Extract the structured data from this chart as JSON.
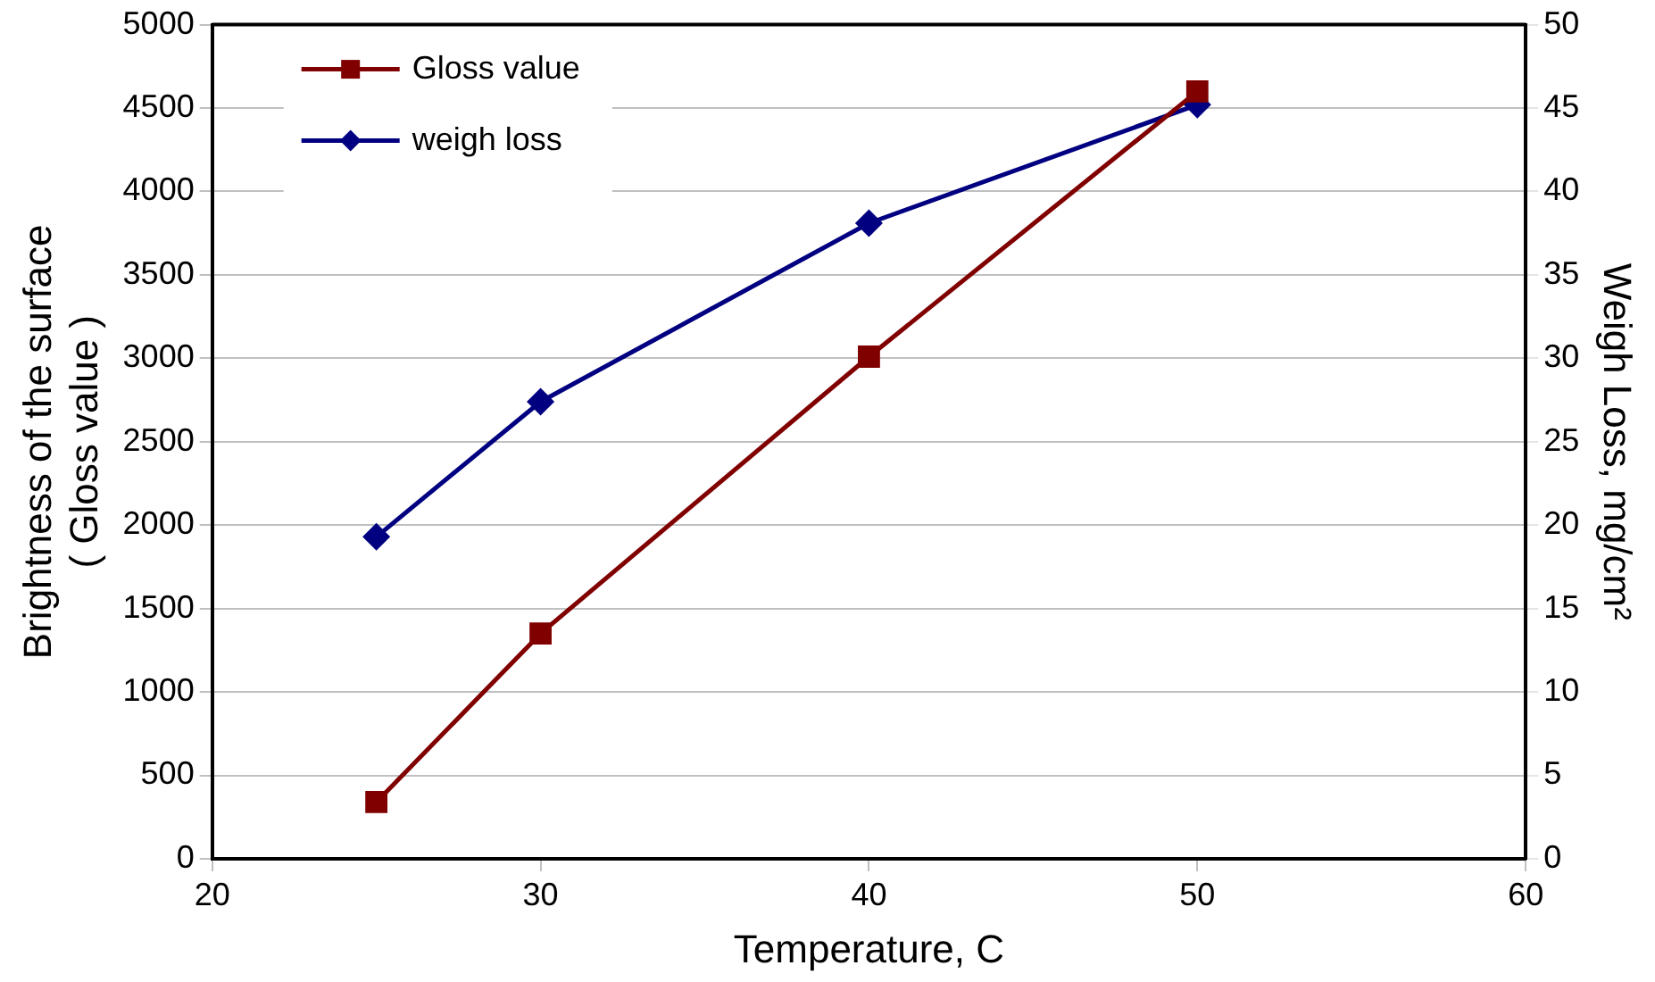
{
  "chart_data": {
    "type": "line",
    "x": [
      25,
      30,
      40,
      50
    ],
    "series": [
      {
        "name": "Gloss value",
        "color": "#800000",
        "marker": "square",
        "values": [
          340,
          1350,
          3010,
          4600
        ]
      },
      {
        "name": "weigh loss",
        "color": "#000080",
        "marker": "diamond",
        "axis": "y2",
        "values": [
          19.3,
          27.4,
          38.1,
          45.2
        ]
      }
    ],
    "xlabel": "Temperature, C",
    "ylabel": "Brightness of the surface\n( Gloss value )",
    "y2label": "Weigh Loss, mg/cm²",
    "xlim": [
      20,
      60
    ],
    "xticks": [
      20,
      30,
      40,
      50,
      60
    ],
    "ylim": [
      0,
      5000
    ],
    "yticks": [
      0,
      500,
      1000,
      1500,
      2000,
      2500,
      3000,
      3500,
      4000,
      4500,
      5000
    ],
    "y2lim": [
      0,
      50
    ],
    "y2ticks": [
      0,
      5,
      10,
      15,
      20,
      25,
      30,
      35,
      40,
      45,
      50
    ],
    "grid": "y",
    "legend": "top left",
    "line_style": "solid"
  }
}
